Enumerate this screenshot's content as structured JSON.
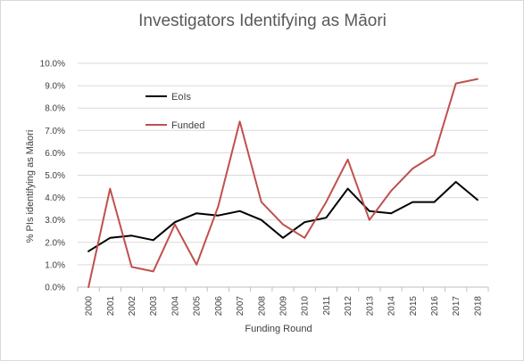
{
  "chart_data": {
    "type": "line",
    "title": "Investigators Identifying as Māori",
    "xlabel": "Funding Round",
    "ylabel": "% PIs identifying as Māori",
    "categories": [
      "2000",
      "2001",
      "2002",
      "2003",
      "2004",
      "2005",
      "2006",
      "2007",
      "2008",
      "2009",
      "2010",
      "2011",
      "2012",
      "2013",
      "2014",
      "2015",
      "2016",
      "2017",
      "2018"
    ],
    "ylim": [
      0,
      10
    ],
    "yticks": [
      "0.0%",
      "1.0%",
      "2.0%",
      "3.0%",
      "4.0%",
      "5.0%",
      "6.0%",
      "7.0%",
      "8.0%",
      "9.0%",
      "10.0%"
    ],
    "grid": "horizontal",
    "legend_position": "inside-top-left",
    "series": [
      {
        "name": "EoIs",
        "color": "#000000",
        "values": [
          1.6,
          2.2,
          2.3,
          2.1,
          2.9,
          3.3,
          3.2,
          3.4,
          3.0,
          2.2,
          2.9,
          3.1,
          4.4,
          3.4,
          3.3,
          3.8,
          3.8,
          4.7,
          3.9
        ]
      },
      {
        "name": "Funded",
        "color": "#c0504d",
        "values": [
          0.0,
          4.4,
          0.9,
          0.7,
          2.8,
          1.0,
          3.6,
          7.4,
          3.8,
          2.8,
          2.2,
          3.8,
          5.7,
          3.0,
          4.3,
          5.3,
          5.9,
          9.1,
          9.3
        ]
      }
    ]
  }
}
